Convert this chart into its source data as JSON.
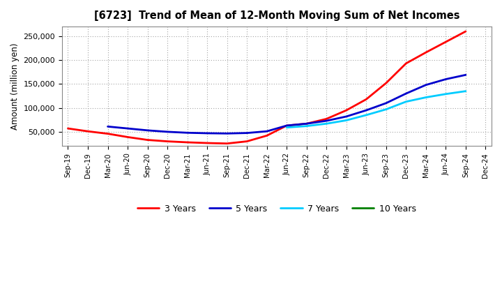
{
  "title": "[6723]  Trend of Mean of 12-Month Moving Sum of Net Incomes",
  "ylabel": "Amount (million yen)",
  "background_color": "#ffffff",
  "grid_color": "#999999",
  "ylim": [
    20000,
    270000
  ],
  "yticks": [
    50000,
    100000,
    150000,
    200000,
    250000
  ],
  "ytick_labels": [
    "50,000",
    "100,000",
    "150,000",
    "200,000",
    "250,000"
  ],
  "x_labels": [
    "Sep-19",
    "Dec-19",
    "Mar-20",
    "Jun-20",
    "Sep-20",
    "Dec-20",
    "Mar-21",
    "Jun-21",
    "Sep-21",
    "Dec-21",
    "Mar-22",
    "Jun-22",
    "Sep-22",
    "Dec-22",
    "Mar-23",
    "Jun-23",
    "Sep-23",
    "Dec-23",
    "Mar-24",
    "Jun-24",
    "Sep-24",
    "Dec-24"
  ],
  "series": {
    "3 Years": {
      "color": "#ff0000",
      "data": [
        57000,
        51000,
        46000,
        39000,
        33000,
        30000,
        28000,
        26500,
        25500,
        30000,
        42000,
        63000,
        67000,
        77000,
        95000,
        118000,
        152000,
        193000,
        216000,
        238000,
        260000,
        null
      ]
    },
    "5 Years": {
      "color": "#0000cc",
      "data": [
        null,
        null,
        61000,
        57000,
        53000,
        50000,
        48000,
        47000,
        46500,
        47500,
        51000,
        63000,
        67000,
        73000,
        82000,
        95000,
        110000,
        130000,
        148000,
        160000,
        169000,
        null
      ]
    },
    "7 Years": {
      "color": "#00ccff",
      "data": [
        null,
        null,
        null,
        null,
        null,
        null,
        null,
        null,
        null,
        null,
        null,
        59000,
        62000,
        67000,
        74000,
        85000,
        97000,
        113000,
        122000,
        129000,
        135000,
        null
      ]
    },
    "10 Years": {
      "color": "#008000",
      "data": [
        null,
        null,
        null,
        null,
        null,
        null,
        null,
        null,
        null,
        null,
        null,
        null,
        null,
        null,
        null,
        null,
        null,
        null,
        null,
        null,
        null,
        null
      ]
    }
  },
  "legend_order": [
    "3 Years",
    "5 Years",
    "7 Years",
    "10 Years"
  ]
}
